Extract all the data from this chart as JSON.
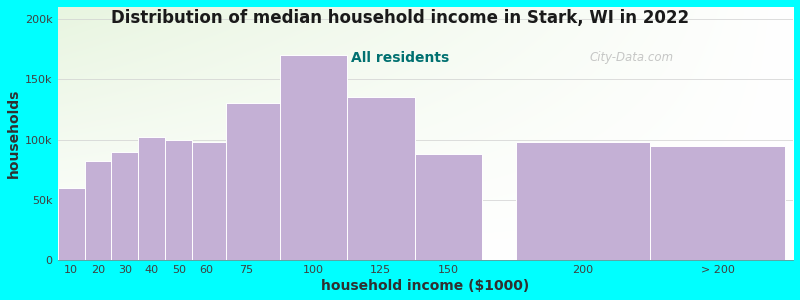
{
  "title": "Distribution of median household income in Stark, WI in 2022",
  "subtitle": "All residents",
  "xlabel": "household income ($1000)",
  "ylabel": "households",
  "background_color": "#00FFFF",
  "bar_color": "#C4B0D5",
  "bar_edge_color": "#ffffff",
  "title_fontsize": 12,
  "subtitle_fontsize": 10,
  "subtitle_color": "#007070",
  "categories": [
    "10",
    "20",
    "30",
    "40",
    "50",
    "60",
    "75",
    "100",
    "125",
    "150",
    "200",
    "> 200"
  ],
  "values": [
    60000,
    82000,
    90000,
    102000,
    100000,
    98000,
    130000,
    170000,
    135000,
    88000,
    98000,
    95000
  ],
  "ylim": [
    0,
    210000
  ],
  "yticks": [
    0,
    50000,
    100000,
    150000,
    200000
  ],
  "ytick_labels": [
    "0",
    "50k",
    "100k",
    "150k",
    "200k"
  ],
  "lefts": [
    5,
    15,
    25,
    35,
    45,
    55,
    67.5,
    87.5,
    112.5,
    137.5,
    175,
    225
  ],
  "widths": [
    10,
    10,
    10,
    10,
    10,
    15,
    25,
    25,
    25,
    25,
    50,
    50
  ],
  "tick_positions": [
    10,
    20,
    30,
    40,
    50,
    60,
    75,
    100,
    125,
    150,
    200,
    250
  ],
  "tick_labels": [
    "10",
    "20",
    "30",
    "40",
    "50",
    "60",
    "75",
    "100",
    "125",
    "150",
    "200",
    "> 200"
  ],
  "xlim": [
    5,
    278
  ],
  "watermark": "City-Data.com"
}
